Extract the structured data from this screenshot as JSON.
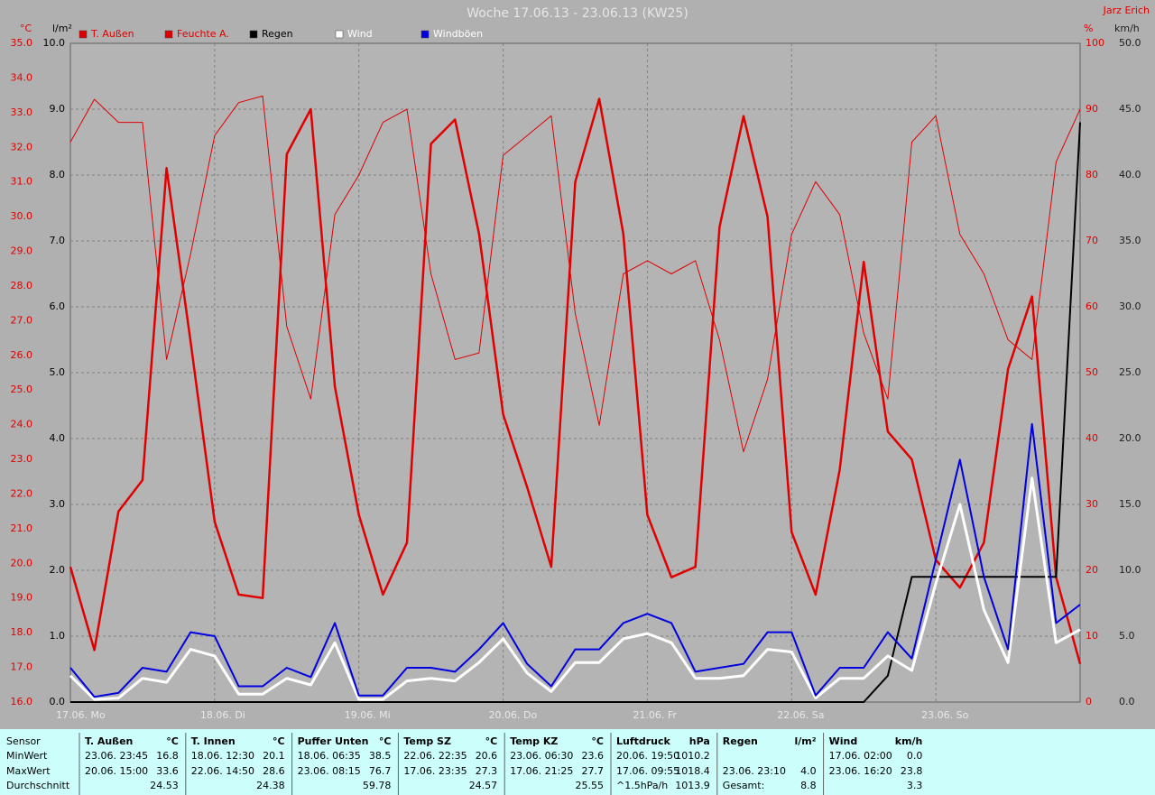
{
  "chart_data": {
    "type": "line",
    "title": "Woche 17.06.13 - 23.06.13 (KW25)",
    "author": "Jarz Erich",
    "grid": true,
    "x": [
      0,
      4,
      8,
      12,
      16,
      20,
      24,
      28,
      32,
      36,
      40,
      44,
      48,
      52,
      56,
      60,
      64,
      68,
      72,
      76,
      80,
      84,
      88,
      92,
      96,
      100,
      104,
      108,
      112,
      116,
      120,
      124,
      128,
      132,
      136,
      140,
      144,
      148,
      152,
      156,
      160,
      164,
      168
    ],
    "xlim": [
      0,
      168
    ],
    "xticks": [
      {
        "value": 0,
        "label": "17.06. Mo"
      },
      {
        "value": 24,
        "label": "18.06. Di"
      },
      {
        "value": 48,
        "label": "19.06. Mi"
      },
      {
        "value": 72,
        "label": "20.06. Do"
      },
      {
        "value": 96,
        "label": "21.06. Fr"
      },
      {
        "value": 120,
        "label": "22.06. Sa"
      },
      {
        "value": 144,
        "label": "23.06. So"
      }
    ],
    "axes": [
      {
        "label": "°C",
        "lim": [
          16,
          35
        ],
        "color": "#e00000",
        "ticks": [
          {
            "value": 16,
            "label": "16.0"
          },
          {
            "value": 17,
            "label": "17.0"
          },
          {
            "value": 18,
            "label": "18.0"
          },
          {
            "value": 19,
            "label": "19.0"
          },
          {
            "value": 20,
            "label": "20.0"
          },
          {
            "value": 21,
            "label": "21.0"
          },
          {
            "value": 22,
            "label": "22.0"
          },
          {
            "value": 23,
            "label": "23.0"
          },
          {
            "value": 24,
            "label": "24.0"
          },
          {
            "value": 25,
            "label": "25.0"
          },
          {
            "value": 26,
            "label": "26.0"
          },
          {
            "value": 27,
            "label": "27.0"
          },
          {
            "value": 28,
            "label": "28.0"
          },
          {
            "value": 29,
            "label": "29.0"
          },
          {
            "value": 30,
            "label": "30.0"
          },
          {
            "value": 31,
            "label": "31.0"
          },
          {
            "value": 32,
            "label": "32.0"
          },
          {
            "value": 33,
            "label": "33.0"
          },
          {
            "value": 34,
            "label": "34.0"
          },
          {
            "value": 35,
            "label": "35.0"
          }
        ]
      },
      {
        "label": "l/m²",
        "lim": [
          0,
          10
        ],
        "color": "#000000",
        "ticks": [
          {
            "value": 0,
            "label": "0.0"
          },
          {
            "value": 1,
            "label": "1.0"
          },
          {
            "value": 2,
            "label": "2.0"
          },
          {
            "value": 3,
            "label": "3.0"
          },
          {
            "value": 4,
            "label": "4.0"
          },
          {
            "value": 5,
            "label": "5.0"
          },
          {
            "value": 6,
            "label": "6.0"
          },
          {
            "value": 7,
            "label": "7.0"
          },
          {
            "value": 8,
            "label": "8.0"
          },
          {
            "value": 9,
            "label": "9.0"
          },
          {
            "value": 10,
            "label": "10.0"
          }
        ]
      },
      {
        "label": "%",
        "lim": [
          0,
          100
        ],
        "color": "#e00000",
        "ticks": [
          0,
          10,
          20,
          30,
          40,
          50,
          60,
          70,
          80,
          90,
          100
        ]
      },
      {
        "label": "km/h",
        "lim": [
          0,
          50
        ],
        "color": "#202020",
        "ticks": [
          {
            "value": 0,
            "label": "0.0"
          },
          {
            "value": 5,
            "label": "5.0"
          },
          {
            "value": 10,
            "label": "10.0"
          },
          {
            "value": 15,
            "label": "15.0"
          },
          {
            "value": 20,
            "label": "20.0"
          },
          {
            "value": 25,
            "label": "25.0"
          },
          {
            "value": 30,
            "label": "30.0"
          },
          {
            "value": 35,
            "label": "35.0"
          },
          {
            "value": 40,
            "label": "40.0"
          },
          {
            "value": 45,
            "label": "45.0"
          },
          {
            "value": 50,
            "label": "50.0"
          }
        ]
      }
    ],
    "series": [
      {
        "name": "T. Außen",
        "color": "#e00000",
        "axis": 0,
        "values": [
          19.9,
          17.5,
          21.5,
          22.4,
          31.4,
          26.4,
          21.2,
          19.1,
          19.0,
          31.8,
          33.1,
          25.1,
          21.4,
          19.1,
          20.6,
          32.1,
          32.8,
          29.5,
          24.3,
          22.2,
          19.9,
          31.0,
          33.4,
          29.5,
          21.4,
          19.6,
          19.9,
          29.7,
          32.9,
          30.0,
          20.9,
          19.1,
          22.7,
          28.7,
          23.8,
          23.0,
          20.1,
          19.3,
          20.6,
          25.6,
          27.7,
          19.6,
          17.1
        ]
      },
      {
        "name": "Feuchte A.",
        "color": "#e00000",
        "axis": 2,
        "values": [
          85,
          91.5,
          88,
          88,
          52,
          68,
          86,
          91,
          92,
          57,
          46,
          74,
          80,
          88,
          90,
          65,
          52,
          53,
          83,
          86,
          89,
          59,
          42,
          65,
          67,
          65,
          67,
          55,
          38,
          49,
          71,
          79,
          74,
          56,
          46,
          85,
          89,
          71,
          65,
          55,
          52,
          82,
          90
        ]
      },
      {
        "name": "Regen",
        "color": "#000000",
        "axis": 1,
        "values": [
          0,
          0,
          0,
          0,
          0,
          0,
          0,
          0,
          0,
          0,
          0,
          0,
          0,
          0,
          0,
          0,
          0,
          0,
          0,
          0,
          0,
          0,
          0,
          0,
          0,
          0,
          0,
          0,
          0,
          0,
          0,
          0,
          0,
          0,
          0.4,
          1.9,
          1.9,
          1.9,
          1.9,
          1.9,
          1.9,
          1.9,
          8.8
        ]
      },
      {
        "name": "Wind",
        "color": "#ffffff",
        "axis": 3,
        "values": [
          2.0,
          0.2,
          0.3,
          1.8,
          1.5,
          4.0,
          3.5,
          0.6,
          0.6,
          1.8,
          1.3,
          4.5,
          0.2,
          0.2,
          1.6,
          1.8,
          1.6,
          3.0,
          4.8,
          2.2,
          0.8,
          3.0,
          3.0,
          4.8,
          5.2,
          4.5,
          1.8,
          1.8,
          2.0,
          4.0,
          3.8,
          0.3,
          1.8,
          1.8,
          3.5,
          2.4,
          9.0,
          15.0,
          7.0,
          3.0,
          17.0,
          4.5,
          5.5
        ]
      },
      {
        "name": "Windböen",
        "color": "#0000e0",
        "axis": 3,
        "values": [
          2.6,
          0.4,
          0.7,
          2.6,
          2.3,
          5.3,
          5.0,
          1.2,
          1.2,
          2.6,
          1.9,
          6.0,
          0.5,
          0.5,
          2.6,
          2.6,
          2.3,
          4.0,
          6.0,
          2.9,
          1.2,
          4.0,
          4.0,
          6.0,
          6.7,
          6.0,
          2.3,
          2.6,
          2.9,
          5.3,
          5.3,
          0.5,
          2.6,
          2.6,
          5.3,
          3.3,
          10.8,
          18.4,
          9.5,
          4.0,
          21.1,
          6.0,
          7.4
        ]
      }
    ]
  },
  "table": {
    "row_labels": [
      "Sensor",
      "MinWert",
      "MaxWert",
      "Durchschnitt"
    ],
    "columns": [
      {
        "name": "T. Außen",
        "unit": "°C",
        "min": {
          "time": "23.06.  23:45",
          "value": "16.8"
        },
        "max": {
          "time": "20.06.  15:00",
          "value": "33.6"
        },
        "avg": {
          "value": "24.53"
        }
      },
      {
        "name": "T. Innen",
        "unit": "°C",
        "min": {
          "time": "18.06.  12:30",
          "value": "20.1"
        },
        "max": {
          "time": "22.06.  14:50",
          "value": "28.6"
        },
        "avg": {
          "value": "24.38"
        }
      },
      {
        "name": "Puffer Unten",
        "unit": "°C",
        "min": {
          "time": "18.06.  06:35",
          "value": "38.5"
        },
        "max": {
          "time": "23.06.  08:15",
          "value": "76.7"
        },
        "avg": {
          "value": "59.78"
        }
      },
      {
        "name": "Temp SZ",
        "unit": "°C",
        "min": {
          "time": "22.06.  22:35",
          "value": "20.6"
        },
        "max": {
          "time": "17.06.  23:35",
          "value": "27.3"
        },
        "avg": {
          "value": "24.57"
        }
      },
      {
        "name": "Temp KZ",
        "unit": "°C",
        "min": {
          "time": "23.06.  06:30",
          "value": "23.6"
        },
        "max": {
          "time": "17.06.  21:25",
          "value": "27.7"
        },
        "avg": {
          "value": "25.55"
        }
      },
      {
        "name": "Luftdruck",
        "unit": "hPa",
        "min": {
          "time": "20.06.  19:50",
          "value": "1010.2"
        },
        "max": {
          "time": "17.06.  09:55",
          "value": "1018.4"
        },
        "avg": {
          "time": "^1.5hPa/h",
          "value": "1013.9"
        }
      },
      {
        "name": "Regen",
        "unit": "l/m²",
        "max": {
          "time": "23.06.  23:10",
          "value": "4.0"
        },
        "avg": {
          "time": "Gesamt:",
          "value": "8.8"
        }
      },
      {
        "name": "Wind",
        "unit": "km/h",
        "min": {
          "time": "17.06.  02:00",
          "value": "0.0"
        },
        "max": {
          "time": "23.06.  16:20",
          "value": "23.8"
        },
        "avg": {
          "value": "3.3"
        }
      }
    ]
  }
}
